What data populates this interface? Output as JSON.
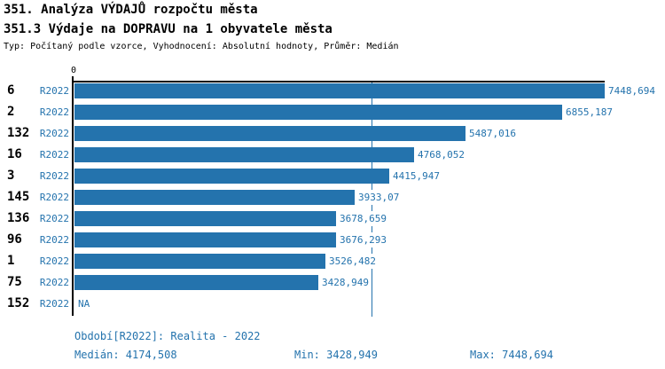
{
  "page": {
    "title_line1": "351. Analýza VÝDAJŮ rozpočtu města",
    "title_line2": "351.3 Výdaje na DOPRAVU na 1 obyvatele města",
    "subtitle": "Typ: Počítaný podle vzorce, Vyhodnocení: Absolutní hodnoty, Průměr: Medián"
  },
  "colors": {
    "accent": "#2473ad",
    "axis": "#000000",
    "background": "#ffffff"
  },
  "chart_data": {
    "type": "bar",
    "orientation": "horizontal",
    "grid": false,
    "legend_position": "none",
    "x_axis": {
      "origin_label": "0",
      "min": 0,
      "max": 7448.694
    },
    "series_period": "R2022",
    "median_line": 4174.508,
    "rows": [
      {
        "category": "6",
        "period": "R2022",
        "value": 7448.694,
        "label": "7448,694"
      },
      {
        "category": "2",
        "period": "R2022",
        "value": 6855.187,
        "label": "6855,187"
      },
      {
        "category": "132",
        "period": "R2022",
        "value": 5487.016,
        "label": "5487,016"
      },
      {
        "category": "16",
        "period": "R2022",
        "value": 4768.052,
        "label": "4768,052"
      },
      {
        "category": "3",
        "period": "R2022",
        "value": 4415.947,
        "label": "4415,947"
      },
      {
        "category": "145",
        "period": "R2022",
        "value": 3933.07,
        "label": "3933,07"
      },
      {
        "category": "136",
        "period": "R2022",
        "value": 3678.659,
        "label": "3678,659"
      },
      {
        "category": "96",
        "period": "R2022",
        "value": 3676.293,
        "label": "3676,293"
      },
      {
        "category": "1",
        "period": "R2022",
        "value": 3526.482,
        "label": "3526,482"
      },
      {
        "category": "75",
        "period": "R2022",
        "value": 3428.949,
        "label": "3428,949"
      },
      {
        "category": "152",
        "period": "R2022",
        "value": null,
        "label": "NA"
      }
    ]
  },
  "footer": {
    "period_label": "Období[R2022]: Realita - 2022",
    "median_label": "Medián: 4174,508",
    "min_label": "Min: 3428,949",
    "max_label": "Max: 7448,694"
  }
}
